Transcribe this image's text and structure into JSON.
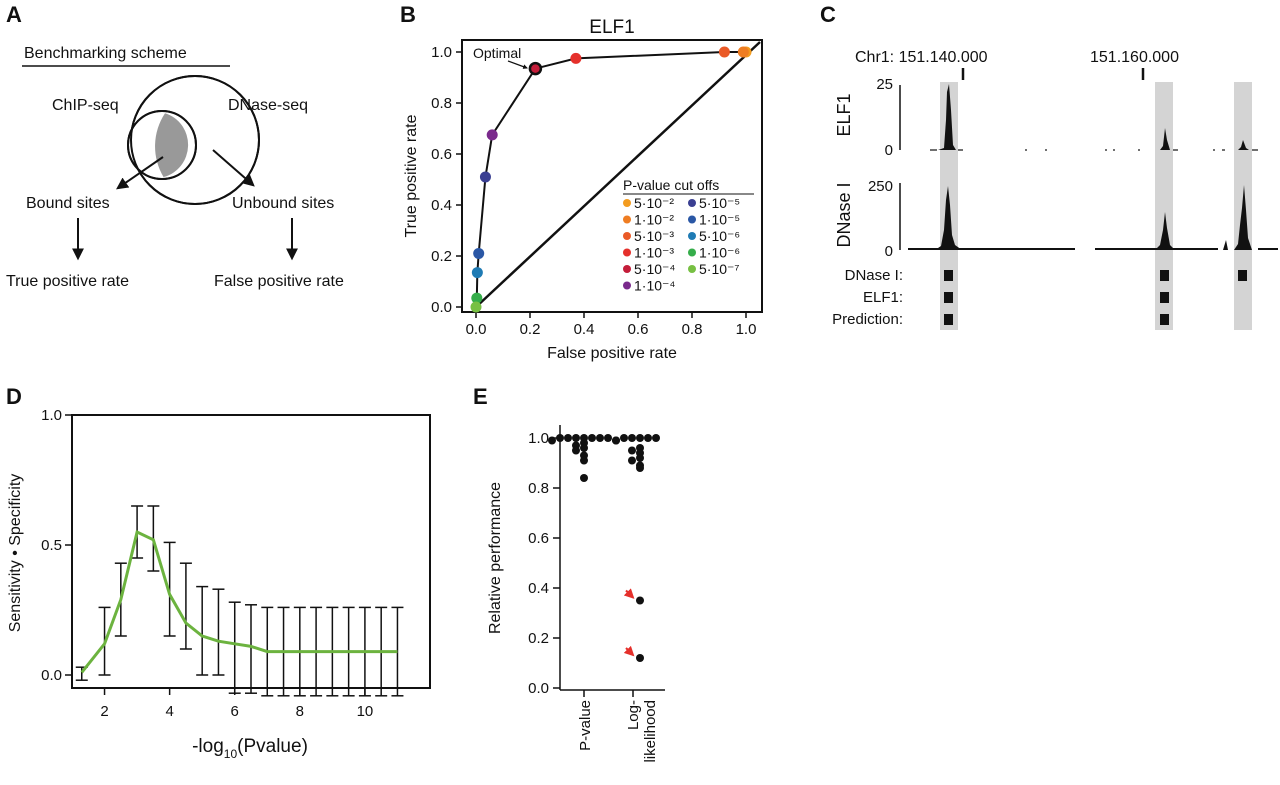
{
  "panels": {
    "A": {
      "letter": "A",
      "title": "Benchmarking scheme",
      "chip_label": "ChIP-seq",
      "dnase_label": "DNase-seq",
      "bound_label": "Bound sites",
      "unbound_label": "Unbound sites",
      "tpr_label": "True positive rate",
      "fpr_label": "False positive rate"
    },
    "B": {
      "letter": "B"
    },
    "C": {
      "letter": "C"
    },
    "D": {
      "letter": "D"
    },
    "E": {
      "letter": "E"
    }
  },
  "chart_data": [
    {
      "panel": "B",
      "type": "line",
      "title": "ELF1",
      "xlabel": "False positive rate",
      "ylabel": "True positive rate",
      "xlim": [
        0,
        1
      ],
      "ylim": [
        0,
        1
      ],
      "xticks": [
        "0.0",
        "0.2",
        "0.4",
        "0.6",
        "0.8",
        "1.0"
      ],
      "yticks": [
        "0.0",
        "0.2",
        "0.4",
        "0.6",
        "0.8",
        "1.0"
      ],
      "annotation": "Optimal",
      "legend_title": "P-value cut offs",
      "legend_placement": "bottom-right",
      "points": [
        {
          "label": "5·10⁻²",
          "x": 1.0,
          "y": 1.0,
          "color": "#f39c1f"
        },
        {
          "label": "1·10⁻²",
          "x": 0.99,
          "y": 1.0,
          "color": "#ef7d22"
        },
        {
          "label": "5·10⁻³",
          "x": 0.92,
          "y": 1.0,
          "color": "#ea5a27"
        },
        {
          "label": "1·10⁻³",
          "x": 0.37,
          "y": 0.975,
          "color": "#e5302b"
        },
        {
          "label": "5·10⁻⁴",
          "x": 0.22,
          "y": 0.935,
          "color": "#c41d3a"
        },
        {
          "label": "1·10⁻⁴",
          "x": 0.06,
          "y": 0.675,
          "color": "#7a2a8c"
        },
        {
          "label": "5·10⁻⁵",
          "x": 0.035,
          "y": 0.51,
          "color": "#3a3f92"
        },
        {
          "label": "1·10⁻⁵",
          "x": 0.01,
          "y": 0.21,
          "color": "#2a57a5"
        },
        {
          "label": "5·10⁻⁶",
          "x": 0.005,
          "y": 0.135,
          "color": "#1f7bb4"
        },
        {
          "label": "1·10⁻⁶",
          "x": 0.003,
          "y": 0.035,
          "color": "#35ad4a"
        },
        {
          "label": "5·10⁻⁷",
          "x": 0.0,
          "y": 0.0,
          "color": "#77c043"
        }
      ]
    },
    {
      "panel": "C",
      "type": "area",
      "coord_labels": [
        "Chr1: 151.140.000",
        "151.160.000"
      ],
      "tracks": [
        {
          "name": "ELF1",
          "yticks": [
            "25",
            "0"
          ]
        },
        {
          "name": "DNase I",
          "yticks": [
            "250",
            "0"
          ]
        }
      ],
      "row_labels": [
        "DNase I:",
        "ELF1:",
        "Prediction:"
      ]
    },
    {
      "panel": "D",
      "type": "line",
      "xlabel_main": "-log",
      "xlabel_sub": "10",
      "xlabel_rest": "(Pvalue)",
      "ylabel": "Sensitivity • Specificity",
      "xlim": [
        1,
        12
      ],
      "ylim": [
        -0.05,
        1.0
      ],
      "xticks": [
        "2",
        "4",
        "6",
        "8",
        "10"
      ],
      "yticks": [
        "0.0",
        "0.5",
        "1.0"
      ],
      "line_color": "#6cb33f",
      "series": [
        {
          "x": [
            1.3,
            2.0,
            2.5,
            3.0,
            3.5,
            4.0,
            4.5,
            5.0,
            5.5,
            6.0,
            6.5,
            7.0,
            7.5,
            8.0,
            8.5,
            9.0,
            9.5,
            10.0,
            10.5,
            11.0
          ],
          "y": [
            0.01,
            0.12,
            0.29,
            0.55,
            0.52,
            0.31,
            0.2,
            0.15,
            0.13,
            0.12,
            0.11,
            0.09,
            0.09,
            0.09,
            0.09,
            0.09,
            0.09,
            0.09,
            0.09,
            0.09
          ],
          "err_low": [
            -0.02,
            0.0,
            0.15,
            0.45,
            0.4,
            0.15,
            0.1,
            0.0,
            0.0,
            -0.07,
            -0.07,
            -0.08,
            -0.08,
            -0.08,
            -0.08,
            -0.08,
            -0.08,
            -0.08,
            -0.08,
            -0.08
          ],
          "err_high": [
            0.03,
            0.26,
            0.43,
            0.65,
            0.65,
            0.51,
            0.43,
            0.34,
            0.33,
            0.28,
            0.27,
            0.26,
            0.26,
            0.26,
            0.26,
            0.26,
            0.26,
            0.26,
            0.26,
            0.26
          ]
        }
      ]
    },
    {
      "panel": "E",
      "type": "scatter",
      "ylabel": "Relative performance",
      "ylim": [
        0,
        1.05
      ],
      "yticks": [
        "0.0",
        "0.2",
        "0.4",
        "0.6",
        "0.8",
        "1.0"
      ],
      "categories": [
        "P-value",
        "Log-likelihood"
      ],
      "category_lines": [
        [
          "P-value"
        ],
        [
          "Log-",
          "likelihood"
        ]
      ],
      "arrow_color": "#e5302b",
      "groups": [
        {
          "name": "P-value",
          "values": [
            1.0,
            1.0,
            1.0,
            1.0,
            1.0,
            1.0,
            1.0,
            0.99,
            0.99,
            0.98,
            0.97,
            0.96,
            0.95,
            0.93,
            0.91,
            0.84
          ]
        },
        {
          "name": "Log-likelihood",
          "values": [
            1.0,
            1.0,
            1.0,
            1.0,
            1.0,
            0.99,
            0.96,
            0.95,
            0.94,
            0.92,
            0.91,
            0.89,
            0.88,
            0.35,
            0.12
          ]
        }
      ],
      "highlighted": [
        0.35,
        0.12
      ]
    }
  ]
}
